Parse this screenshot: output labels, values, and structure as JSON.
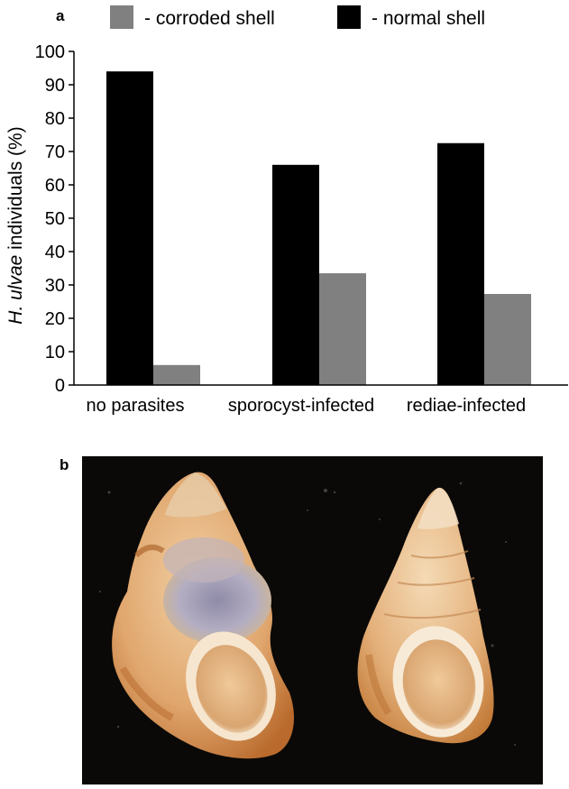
{
  "panel_a_label": "a",
  "panel_b_label": "b",
  "chart_data": {
    "type": "bar",
    "categories": [
      "no parasites",
      "sporocyst-infected",
      "rediae-infected"
    ],
    "series": [
      {
        "name": "normal shell",
        "values": [
          94,
          66,
          72.5
        ],
        "color": "#000000"
      },
      {
        "name": "corroded shell",
        "values": [
          6,
          33.5,
          27.3
        ],
        "color": "#808080"
      }
    ],
    "legend": {
      "position": "top",
      "entries": [
        {
          "label": "- corroded shell",
          "color": "#808080"
        },
        {
          "label": "- normal shell",
          "color": "#000000"
        }
      ]
    },
    "ylabel_italic": "H. ulvae",
    "ylabel_rest": " individuals (%)",
    "xlabel": "",
    "ylim": [
      0,
      100
    ],
    "yticks": [
      0,
      10,
      20,
      30,
      40,
      50,
      60,
      70,
      80,
      90,
      100
    ],
    "grid": false
  },
  "photo": {
    "background": "#0b0907",
    "shell_color": "#e9b98a",
    "rust_color": "#c8762f",
    "corrosion_color": "#a9a4bd",
    "aperture_color": "#e4b989"
  }
}
